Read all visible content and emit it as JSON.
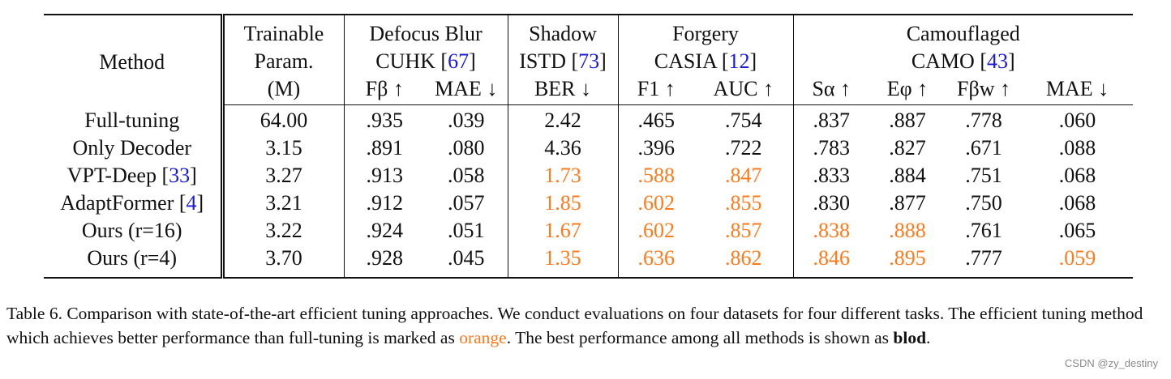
{
  "table": {
    "method_header": "Method",
    "param_header": [
      "Trainable",
      "Param.",
      "(M)"
    ],
    "tasks": [
      {
        "task": "Defocus Blur",
        "dataset": "CUHK",
        "ref": "67",
        "metrics": [
          "Fβ ↑",
          "MAE ↓"
        ]
      },
      {
        "task": "Shadow",
        "dataset": "ISTD",
        "ref": "73",
        "metrics": [
          "BER ↓"
        ]
      },
      {
        "task": "Forgery",
        "dataset": "CASIA",
        "ref": "12",
        "metrics": [
          "F1 ↑",
          "AUC ↑"
        ]
      },
      {
        "task": "Camouflaged",
        "dataset": "CAMO",
        "ref": "43",
        "metrics": [
          "Sα ↑",
          "Eφ ↑",
          "Fβw ↑",
          "MAE ↓"
        ]
      }
    ],
    "rows": [
      {
        "method": "Full-tuning",
        "ref": "",
        "param": "64.00",
        "values": [
          ".935",
          ".039",
          "2.42",
          ".465",
          ".754",
          ".837",
          ".887",
          ".778",
          ".060"
        ],
        "styles": [
          "b",
          "b",
          "",
          "",
          "",
          "",
          "",
          "b",
          ""
        ]
      },
      {
        "method": "Only Decoder",
        "ref": "",
        "param": "3.15",
        "values": [
          ".891",
          ".080",
          "4.36",
          ".396",
          ".722",
          ".783",
          ".827",
          ".671",
          ".088"
        ],
        "styles": [
          "",
          "",
          "",
          "",
          "",
          "",
          "",
          "",
          ""
        ]
      },
      {
        "method": "VPT-Deep",
        "ref": "33",
        "param": "3.27",
        "values": [
          ".913",
          ".058",
          "1.73",
          ".588",
          ".847",
          ".833",
          ".884",
          ".751",
          ".068"
        ],
        "styles": [
          "",
          "",
          "o",
          "o",
          "o",
          "",
          "",
          "",
          ""
        ]
      },
      {
        "method": "AdaptFormer",
        "ref": "4",
        "param": "3.21",
        "values": [
          ".912",
          ".057",
          "1.85",
          ".602",
          ".855",
          ".830",
          ".877",
          ".750",
          ".068"
        ],
        "styles": [
          "",
          "",
          "o",
          "o",
          "o",
          "",
          "",
          "",
          ""
        ]
      },
      {
        "method": "Ours (r=16)",
        "ref": "",
        "param": "3.22",
        "values": [
          ".924",
          ".051",
          "1.67",
          ".602",
          ".857",
          ".838",
          ".888",
          ".761",
          ".065"
        ],
        "styles": [
          "",
          "",
          "o",
          "o",
          "o",
          "o",
          "o",
          "",
          ""
        ]
      },
      {
        "method": "Ours (r=4)",
        "ref": "",
        "param": "3.70",
        "values": [
          ".928",
          ".045",
          "1.35",
          ".636",
          ".862",
          ".846",
          ".895",
          ".777",
          ".059"
        ],
        "styles": [
          "",
          "",
          "ob",
          "ob",
          "ob",
          "ob",
          "ob",
          "",
          "ob"
        ]
      }
    ]
  },
  "caption": {
    "part1": "Table 6. Comparison with state-of-the-art efficient tuning approaches. We conduct evaluations on four datasets for four different tasks. The efficient tuning method which achieves better performance than full-tuning is marked as ",
    "orange_word": "orange",
    "part2": ". The best performance among all methods is shown as ",
    "bold_word": "blod",
    "part3": "."
  },
  "watermark": "CSDN @zy_destiny",
  "colors": {
    "highlight": "#ff7a1a",
    "reference": "#1a1adb",
    "text": "#111111"
  }
}
